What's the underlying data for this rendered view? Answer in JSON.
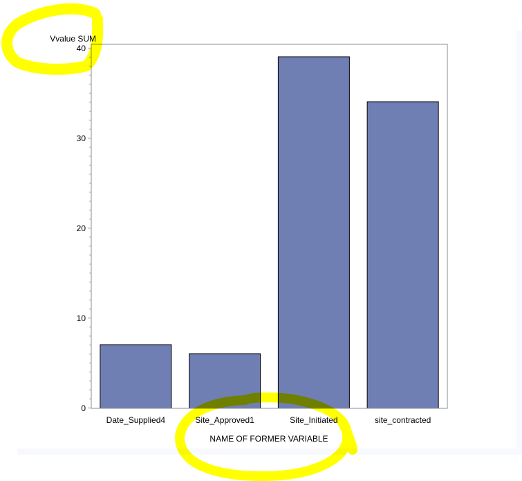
{
  "chart_data": {
    "type": "bar",
    "categories": [
      "Date_Supplied4",
      "Site_Approved1",
      "Site_Initiated",
      "site_contracted"
    ],
    "values": [
      7,
      6,
      39,
      34
    ],
    "xlabel": "NAME OF FORMER VARIABLE",
    "ylabel": "Vvalue SUM",
    "ylim": [
      0,
      40
    ],
    "yticks": [
      0,
      10,
      20,
      30,
      40
    ],
    "grid": false,
    "bar_color": "#6f7fb3",
    "annotation_color": "#ffff00"
  }
}
